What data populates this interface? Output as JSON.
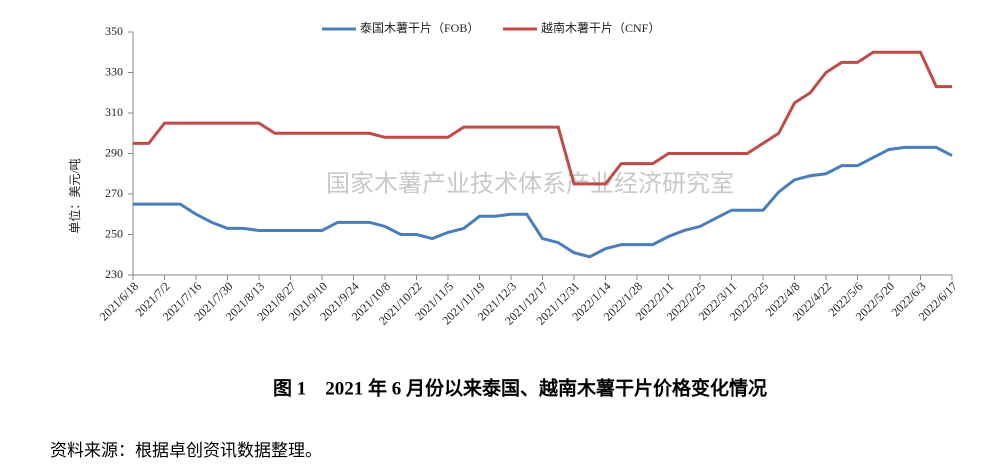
{
  "chart_data": {
    "type": "line",
    "y_label": "单位：美元/吨",
    "watermark": "国家木薯产业技术体系产业经济研究室",
    "caption": "图 1　2021 年 6 月份以来泰国、越南木薯干片价格变化情况",
    "source": "资料来源：根据卓创资讯数据整理。",
    "categories": [
      "2021/6/18",
      null,
      "2021/7/2",
      null,
      "2021/7/16",
      null,
      "2021/7/30",
      null,
      "2021/8/13",
      null,
      "2021/8/27",
      null,
      "2021/9/10",
      null,
      "2021/9/24",
      null,
      "2021/10/8",
      null,
      "2021/10/22",
      null,
      "2021/11/5",
      null,
      "2021/11/19",
      null,
      "2021/12/3",
      null,
      "2021/12/17",
      null,
      "2021/12/31",
      null,
      "2022/1/14",
      null,
      "2022/1/28",
      null,
      "2022/2/11",
      null,
      "2022/2/25",
      null,
      "2022/3/11",
      null,
      "2022/3/25",
      null,
      "2022/4/8",
      null,
      "2022/4/22",
      null,
      "2022/5/6",
      null,
      "2022/5/20",
      null,
      "2022/6/3",
      null,
      "2022/6/17"
    ],
    "series": [
      {
        "name": "泰国木薯干片（FOB）",
        "color": "#4a7ebb",
        "values": [
          265,
          265,
          265,
          265,
          260,
          256,
          253,
          253,
          252,
          252,
          252,
          252,
          252,
          256,
          256,
          256,
          254,
          250,
          250,
          248,
          251,
          253,
          259,
          259,
          260,
          260,
          248,
          246,
          241,
          239,
          243,
          245,
          245,
          245,
          249,
          252,
          254,
          258,
          262,
          262,
          262,
          271,
          277,
          279,
          280,
          284,
          284,
          288,
          292,
          293,
          293,
          293,
          289
        ]
      },
      {
        "name": "越南木薯干片（CNF）",
        "color": "#be4b48",
        "values": [
          295,
          295,
          305,
          305,
          305,
          305,
          305,
          305,
          305,
          300,
          300,
          300,
          300,
          300,
          300,
          300,
          298,
          298,
          298,
          298,
          298,
          303,
          303,
          303,
          303,
          303,
          303,
          303,
          275,
          275,
          275,
          285,
          285,
          285,
          290,
          290,
          290,
          290,
          290,
          290,
          295,
          300,
          315,
          320,
          330,
          335,
          335,
          340,
          340,
          340,
          340,
          323,
          323
        ]
      }
    ],
    "ylim": [
      230,
      350
    ],
    "yticks": [
      230,
      250,
      270,
      290,
      310,
      330,
      350
    ],
    "grid": false
  }
}
